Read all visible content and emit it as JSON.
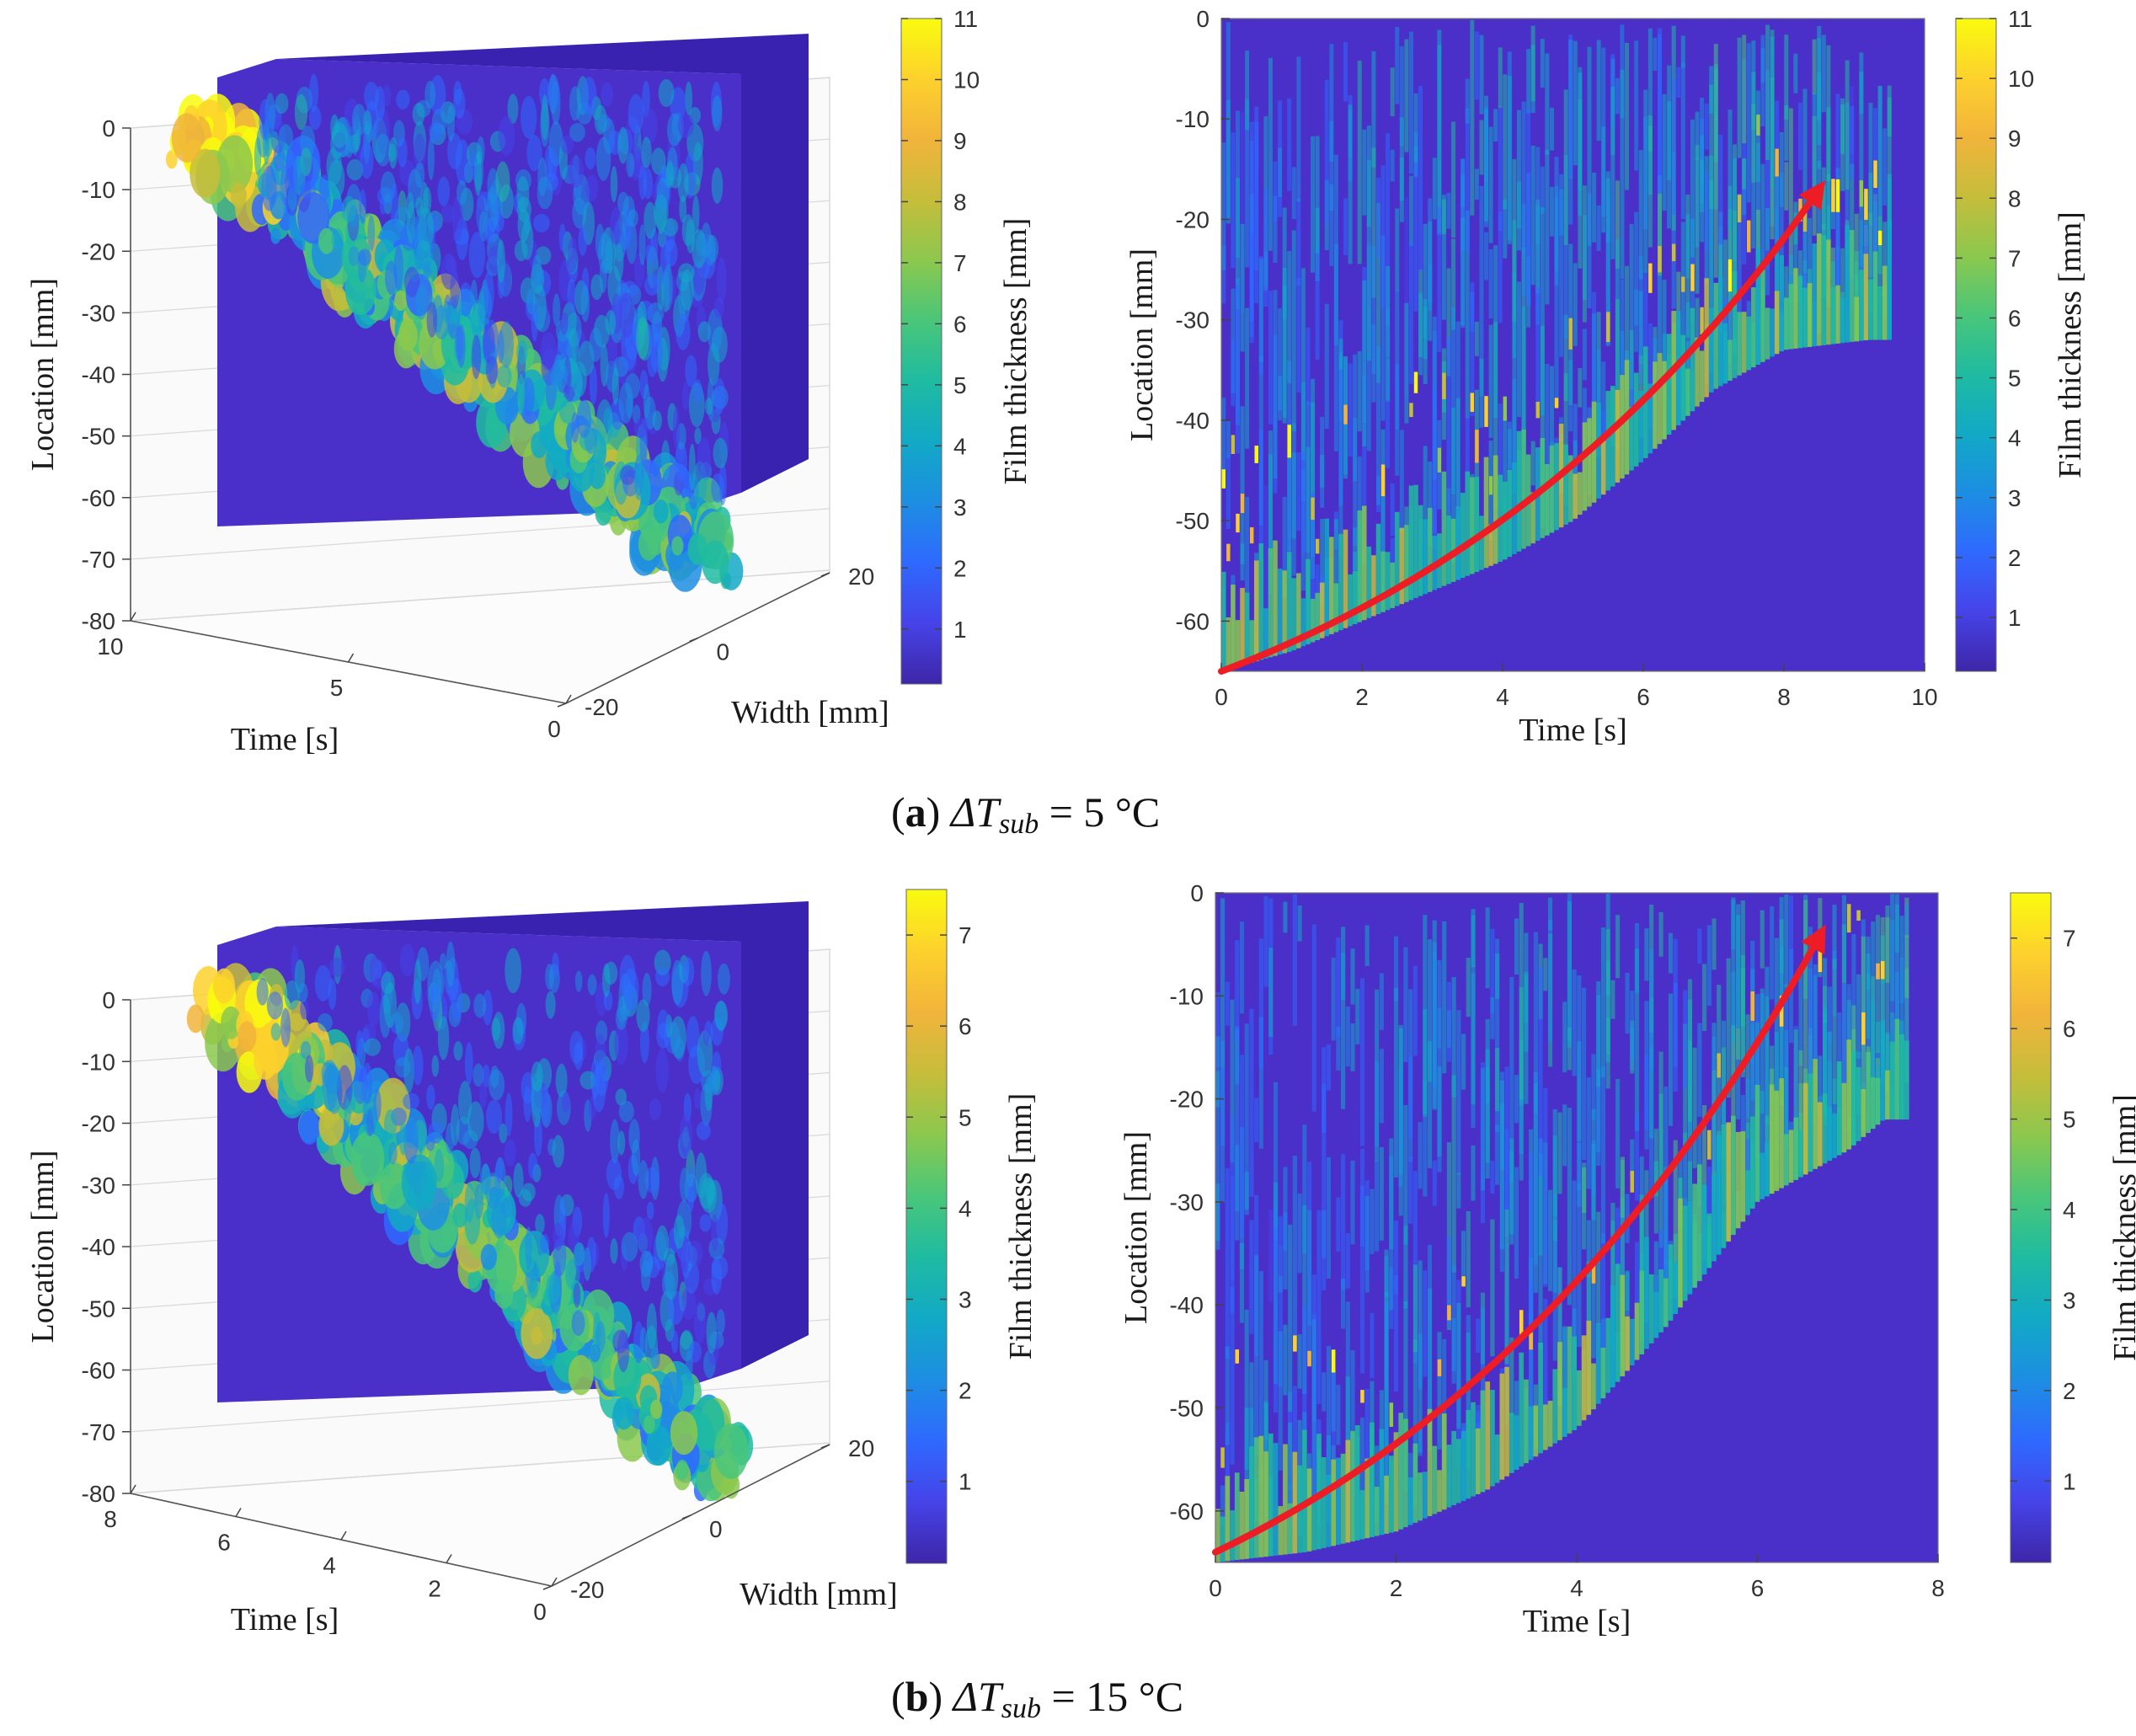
{
  "colors": {
    "parula": [
      "#3e26a8",
      "#4643e8",
      "#2f69ff",
      "#1d8ee2",
      "#12a9c6",
      "#1fbba1",
      "#49c67a",
      "#8bc84e",
      "#c6bd3b",
      "#f1b43b",
      "#fdd12d",
      "#f9fb0e"
    ],
    "background_film": "#4a2fc9",
    "arrow": "#ee1c25",
    "grid": "#d9d9d9",
    "axis": "#555555"
  },
  "captions": {
    "a": {
      "label": "a",
      "prefix": "ΔT",
      "sub": "sub",
      "value": " = 5 °C"
    },
    "b": {
      "label": "b",
      "prefix": "ΔT",
      "sub": "sub",
      "value": " = 15 °C"
    }
  },
  "chart_data": [
    {
      "id": "a-3d",
      "type": "surface3d",
      "panel": "a",
      "zlabel": "Location [mm]",
      "xlabel": "Time [s]",
      "ylabel": "Width [mm]",
      "z_ticks": [
        "0",
        "-10",
        "-20",
        "-30",
        "-40",
        "-50",
        "-60",
        "-70",
        "-80"
      ],
      "time_ticks": [
        "10",
        "5",
        "0"
      ],
      "width_ticks": [
        "20",
        "0",
        "-20"
      ],
      "colorbar": {
        "label": "Film thickness [mm]",
        "ticks": [
          "11",
          "10",
          "9",
          "8",
          "7",
          "6",
          "5",
          "4",
          "3",
          "2",
          "1"
        ],
        "range": [
          0.1,
          11
        ]
      }
    },
    {
      "id": "a-2d",
      "type": "heatmap",
      "panel": "a",
      "xlabel": "Time [s]",
      "ylabel": "Location [mm]",
      "xlim": [
        0,
        10
      ],
      "ylim": [
        -65,
        0
      ],
      "x_ticks": [
        "0",
        "2",
        "4",
        "6",
        "8",
        "10"
      ],
      "y_ticks": [
        "0",
        "-10",
        "-20",
        "-30",
        "-40",
        "-50",
        "-60"
      ],
      "front_boundary": {
        "t": [
          0,
          1,
          2,
          3,
          4,
          5,
          6,
          7,
          8,
          9.2
        ],
        "location": [
          -65,
          -63,
          -60,
          -57,
          -54,
          -50,
          -44,
          -37,
          -33,
          -32
        ]
      },
      "arrow": {
        "from": [
          0,
          -65
        ],
        "to": [
          8.5,
          -17
        ]
      },
      "colorbar": {
        "label": "Film thickness [mm]",
        "ticks": [
          "11",
          "10",
          "9",
          "8",
          "7",
          "6",
          "5",
          "4",
          "3",
          "2",
          "1"
        ],
        "range": [
          0.1,
          11
        ]
      }
    },
    {
      "id": "b-3d",
      "type": "surface3d",
      "panel": "b",
      "zlabel": "Location [mm]",
      "xlabel": "Time [s]",
      "ylabel": "Width [mm]",
      "z_ticks": [
        "0",
        "-10",
        "-20",
        "-30",
        "-40",
        "-50",
        "-60",
        "-70",
        "-80"
      ],
      "time_ticks": [
        "8",
        "6",
        "4",
        "2",
        "0"
      ],
      "width_ticks": [
        "20",
        "0",
        "-20"
      ],
      "colorbar": {
        "label": "Film thickness [mm]",
        "ticks": [
          "7",
          "6",
          "5",
          "4",
          "3",
          "2",
          "1"
        ],
        "range": [
          0.1,
          7.5
        ]
      }
    },
    {
      "id": "b-2d",
      "type": "heatmap",
      "panel": "b",
      "xlabel": "Time [s]",
      "ylabel": "Location [mm]",
      "xlim": [
        0,
        8
      ],
      "ylim": [
        -65,
        0
      ],
      "x_ticks": [
        "0",
        "2",
        "4",
        "6",
        "8"
      ],
      "y_ticks": [
        "0",
        "-10",
        "-20",
        "-30",
        "-40",
        "-50",
        "-60"
      ],
      "front_boundary": {
        "t": [
          0,
          1,
          2,
          3,
          4,
          5,
          6,
          7,
          7.4
        ],
        "location": [
          -65,
          -64,
          -62,
          -58,
          -52,
          -42,
          -30,
          -25,
          -22
        ]
      },
      "arrow": {
        "from": [
          0,
          -64
        ],
        "to": [
          6.7,
          -4
        ]
      },
      "colorbar": {
        "label": "Film thickness [mm]",
        "ticks": [
          "7",
          "6",
          "5",
          "4",
          "3",
          "2",
          "1"
        ],
        "range": [
          0.1,
          7.5
        ]
      }
    }
  ]
}
